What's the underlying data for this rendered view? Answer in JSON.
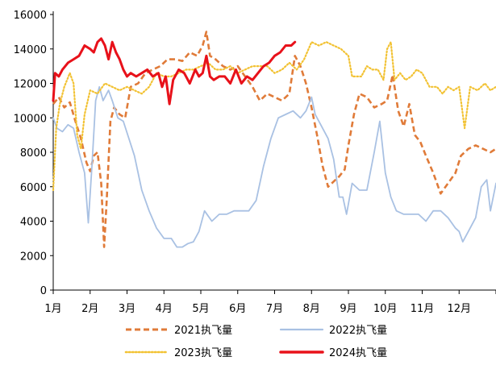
{
  "chart_data": {
    "type": "line",
    "title": "",
    "xlabel": "",
    "ylabel": "",
    "ylim": [
      0,
      16000
    ],
    "yticks": [
      0,
      2000,
      4000,
      6000,
      8000,
      10000,
      12000,
      14000,
      16000
    ],
    "ytick_labels": [
      "0",
      "2000",
      "4000",
      "6000",
      "8000",
      "10000",
      "12000",
      "14000",
      "16000"
    ],
    "xticks": [
      "1月",
      "2月",
      "3月",
      "4月",
      "5月",
      "6月",
      "7月",
      "8月",
      "9月",
      "10月",
      "11月",
      "12月"
    ],
    "legend_position": "bottom",
    "grid": false,
    "x_unit": "month (1 = start of January, 13 = end of December)",
    "series": [
      {
        "name": "2021执飞量",
        "color": "#E07B39",
        "style": "dashed",
        "points": [
          [
            1.0,
            10800
          ],
          [
            1.15,
            11200
          ],
          [
            1.3,
            10600
          ],
          [
            1.45,
            10900
          ],
          [
            1.6,
            9800
          ],
          [
            1.75,
            8800
          ],
          [
            1.9,
            7400
          ],
          [
            2.0,
            6900
          ],
          [
            2.1,
            7800
          ],
          [
            2.2,
            8000
          ],
          [
            2.3,
            6200
          ],
          [
            2.38,
            2500
          ],
          [
            2.45,
            5200
          ],
          [
            2.55,
            9800
          ],
          [
            2.65,
            10600
          ],
          [
            2.8,
            10200
          ],
          [
            2.95,
            10000
          ],
          [
            3.1,
            11800
          ],
          [
            3.3,
            12000
          ],
          [
            3.5,
            12600
          ],
          [
            3.7,
            12800
          ],
          [
            3.9,
            13000
          ],
          [
            4.1,
            13400
          ],
          [
            4.3,
            13400
          ],
          [
            4.5,
            13300
          ],
          [
            4.7,
            13800
          ],
          [
            4.9,
            13600
          ],
          [
            5.05,
            14200
          ],
          [
            5.15,
            15000
          ],
          [
            5.25,
            13600
          ],
          [
            5.4,
            13400
          ],
          [
            5.6,
            13000
          ],
          [
            5.8,
            12800
          ],
          [
            6.0,
            13000
          ],
          [
            6.2,
            12400
          ],
          [
            6.4,
            11800
          ],
          [
            6.6,
            11000
          ],
          [
            6.8,
            11400
          ],
          [
            7.0,
            11200
          ],
          [
            7.2,
            11000
          ],
          [
            7.4,
            11400
          ],
          [
            7.55,
            13600
          ],
          [
            7.7,
            13000
          ],
          [
            7.85,
            12000
          ],
          [
            8.0,
            10600
          ],
          [
            8.15,
            9000
          ],
          [
            8.3,
            7200
          ],
          [
            8.45,
            6000
          ],
          [
            8.6,
            6300
          ],
          [
            8.75,
            6600
          ],
          [
            8.9,
            7000
          ],
          [
            9.0,
            8400
          ],
          [
            9.15,
            10200
          ],
          [
            9.3,
            11400
          ],
          [
            9.5,
            11200
          ],
          [
            9.7,
            10600
          ],
          [
            9.9,
            10800
          ],
          [
            10.05,
            11000
          ],
          [
            10.2,
            12500
          ],
          [
            10.35,
            10400
          ],
          [
            10.5,
            9500
          ],
          [
            10.65,
            10800
          ],
          [
            10.8,
            9000
          ],
          [
            10.95,
            8600
          ],
          [
            11.1,
            7800
          ],
          [
            11.3,
            6800
          ],
          [
            11.5,
            5600
          ],
          [
            11.7,
            6200
          ],
          [
            11.9,
            6800
          ],
          [
            12.05,
            7800
          ],
          [
            12.25,
            8200
          ],
          [
            12.45,
            8400
          ],
          [
            12.65,
            8200
          ],
          [
            12.85,
            8000
          ],
          [
            13.0,
            8200
          ]
        ]
      },
      {
        "name": "2022执飞量",
        "color": "#A9C1E3",
        "style": "solid",
        "points": [
          [
            1.0,
            10000
          ],
          [
            1.1,
            9400
          ],
          [
            1.25,
            9200
          ],
          [
            1.4,
            9600
          ],
          [
            1.55,
            9400
          ],
          [
            1.7,
            8000
          ],
          [
            1.85,
            6800
          ],
          [
            1.95,
            3900
          ],
          [
            2.05,
            7200
          ],
          [
            2.15,
            11000
          ],
          [
            2.25,
            11800
          ],
          [
            2.35,
            11000
          ],
          [
            2.5,
            11600
          ],
          [
            2.6,
            11000
          ],
          [
            2.75,
            10000
          ],
          [
            2.9,
            9800
          ],
          [
            3.05,
            8800
          ],
          [
            3.2,
            7800
          ],
          [
            3.4,
            5800
          ],
          [
            3.6,
            4600
          ],
          [
            3.8,
            3600
          ],
          [
            4.0,
            3000
          ],
          [
            4.2,
            3000
          ],
          [
            4.35,
            2500
          ],
          [
            4.5,
            2500
          ],
          [
            4.65,
            2700
          ],
          [
            4.8,
            2800
          ],
          [
            4.95,
            3400
          ],
          [
            5.1,
            4600
          ],
          [
            5.3,
            4000
          ],
          [
            5.5,
            4400
          ],
          [
            5.7,
            4400
          ],
          [
            5.9,
            4600
          ],
          [
            6.1,
            4600
          ],
          [
            6.3,
            4600
          ],
          [
            6.5,
            5200
          ],
          [
            6.7,
            7200
          ],
          [
            6.9,
            8800
          ],
          [
            7.1,
            10000
          ],
          [
            7.3,
            10200
          ],
          [
            7.5,
            10400
          ],
          [
            7.7,
            10000
          ],
          [
            7.85,
            10400
          ],
          [
            8.0,
            11200
          ],
          [
            8.1,
            10200
          ],
          [
            8.25,
            9600
          ],
          [
            8.45,
            8800
          ],
          [
            8.6,
            7600
          ],
          [
            8.75,
            5400
          ],
          [
            8.85,
            5400
          ],
          [
            8.95,
            4400
          ],
          [
            9.1,
            6200
          ],
          [
            9.3,
            5800
          ],
          [
            9.5,
            5800
          ],
          [
            9.7,
            8000
          ],
          [
            9.85,
            9800
          ],
          [
            10.0,
            6800
          ],
          [
            10.15,
            5400
          ],
          [
            10.3,
            4600
          ],
          [
            10.5,
            4400
          ],
          [
            10.7,
            4400
          ],
          [
            10.9,
            4400
          ],
          [
            11.1,
            4000
          ],
          [
            11.3,
            4600
          ],
          [
            11.5,
            4600
          ],
          [
            11.7,
            4200
          ],
          [
            11.9,
            3600
          ],
          [
            12.0,
            3400
          ],
          [
            12.1,
            2800
          ],
          [
            12.25,
            3400
          ],
          [
            12.45,
            4200
          ],
          [
            12.6,
            6000
          ],
          [
            12.75,
            6400
          ],
          [
            12.85,
            4600
          ],
          [
            13.0,
            6200
          ]
        ]
      },
      {
        "name": "2023执飞量",
        "color": "#F2C233",
        "style": "dotted",
        "points": [
          [
            1.0,
            5800
          ],
          [
            1.08,
            9400
          ],
          [
            1.18,
            10800
          ],
          [
            1.3,
            11800
          ],
          [
            1.45,
            12600
          ],
          [
            1.55,
            12000
          ],
          [
            1.65,
            9000
          ],
          [
            1.75,
            8200
          ],
          [
            1.85,
            10200
          ],
          [
            2.0,
            11600
          ],
          [
            2.2,
            11400
          ],
          [
            2.4,
            12000
          ],
          [
            2.6,
            11800
          ],
          [
            2.8,
            11600
          ],
          [
            3.0,
            11800
          ],
          [
            3.2,
            11600
          ],
          [
            3.4,
            11400
          ],
          [
            3.6,
            11800
          ],
          [
            3.8,
            12600
          ],
          [
            4.0,
            12400
          ],
          [
            4.2,
            12400
          ],
          [
            4.4,
            12600
          ],
          [
            4.6,
            12800
          ],
          [
            4.8,
            12800
          ],
          [
            5.0,
            13000
          ],
          [
            5.2,
            13200
          ],
          [
            5.4,
            12800
          ],
          [
            5.6,
            12800
          ],
          [
            5.8,
            13000
          ],
          [
            6.0,
            12600
          ],
          [
            6.2,
            12800
          ],
          [
            6.4,
            13000
          ],
          [
            6.6,
            13000
          ],
          [
            6.8,
            13000
          ],
          [
            7.0,
            12600
          ],
          [
            7.2,
            12800
          ],
          [
            7.4,
            13200
          ],
          [
            7.6,
            12800
          ],
          [
            7.8,
            13400
          ],
          [
            8.0,
            14400
          ],
          [
            8.2,
            14200
          ],
          [
            8.4,
            14400
          ],
          [
            8.6,
            14200
          ],
          [
            8.8,
            14000
          ],
          [
            9.0,
            13600
          ],
          [
            9.1,
            12400
          ],
          [
            9.2,
            12400
          ],
          [
            9.35,
            12400
          ],
          [
            9.5,
            13000
          ],
          [
            9.65,
            12800
          ],
          [
            9.8,
            12800
          ],
          [
            9.95,
            12200
          ],
          [
            10.05,
            14000
          ],
          [
            10.15,
            14400
          ],
          [
            10.25,
            12200
          ],
          [
            10.4,
            12600
          ],
          [
            10.55,
            12200
          ],
          [
            10.7,
            12400
          ],
          [
            10.85,
            12800
          ],
          [
            11.0,
            12600
          ],
          [
            11.2,
            11800
          ],
          [
            11.4,
            11800
          ],
          [
            11.55,
            11400
          ],
          [
            11.7,
            11800
          ],
          [
            11.85,
            11600
          ],
          [
            12.0,
            11800
          ],
          [
            12.15,
            9400
          ],
          [
            12.3,
            11800
          ],
          [
            12.5,
            11600
          ],
          [
            12.7,
            12000
          ],
          [
            12.85,
            11600
          ],
          [
            13.0,
            11800
          ]
        ]
      },
      {
        "name": "2024执飞量",
        "color": "#E8111A",
        "style": "solid",
        "points": [
          [
            1.0,
            11000
          ],
          [
            1.05,
            12600
          ],
          [
            1.15,
            12400
          ],
          [
            1.25,
            12800
          ],
          [
            1.4,
            13200
          ],
          [
            1.55,
            13400
          ],
          [
            1.7,
            13600
          ],
          [
            1.85,
            14200
          ],
          [
            2.0,
            14000
          ],
          [
            2.1,
            13800
          ],
          [
            2.2,
            14400
          ],
          [
            2.3,
            14600
          ],
          [
            2.4,
            14200
          ],
          [
            2.5,
            13400
          ],
          [
            2.6,
            14400
          ],
          [
            2.7,
            13800
          ],
          [
            2.8,
            13400
          ],
          [
            2.9,
            12800
          ],
          [
            3.0,
            12400
          ],
          [
            3.1,
            12600
          ],
          [
            3.25,
            12400
          ],
          [
            3.4,
            12600
          ],
          [
            3.55,
            12800
          ],
          [
            3.7,
            12400
          ],
          [
            3.85,
            12600
          ],
          [
            3.95,
            11800
          ],
          [
            4.05,
            12400
          ],
          [
            4.15,
            10800
          ],
          [
            4.25,
            12200
          ],
          [
            4.4,
            12800
          ],
          [
            4.55,
            12600
          ],
          [
            4.7,
            12000
          ],
          [
            4.85,
            12800
          ],
          [
            4.95,
            12400
          ],
          [
            5.05,
            12600
          ],
          [
            5.15,
            13600
          ],
          [
            5.25,
            12400
          ],
          [
            5.35,
            12200
          ],
          [
            5.5,
            12400
          ],
          [
            5.65,
            12400
          ],
          [
            5.8,
            12000
          ],
          [
            5.95,
            12800
          ],
          [
            6.1,
            12000
          ],
          [
            6.25,
            12400
          ],
          [
            6.4,
            12200
          ],
          [
            6.55,
            12600
          ],
          [
            6.7,
            13000
          ],
          [
            6.85,
            13200
          ],
          [
            7.0,
            13600
          ],
          [
            7.15,
            13800
          ],
          [
            7.3,
            14200
          ],
          [
            7.45,
            14200
          ],
          [
            7.55,
            14400
          ]
        ]
      }
    ]
  }
}
